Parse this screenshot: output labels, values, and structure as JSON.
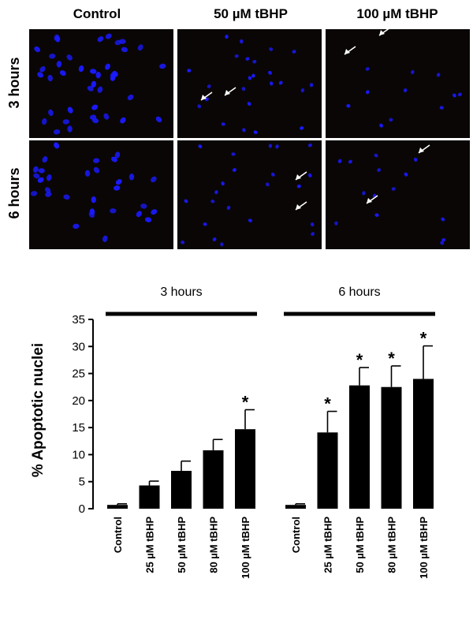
{
  "micrograph_panel": {
    "column_labels": [
      "Control",
      "50 µM tBHP",
      "100 µM tBHP"
    ],
    "row_labels": [
      "3 hours",
      "6 hours"
    ],
    "nucleus_color": "#1a1aff",
    "background_color": "#0a0606",
    "arrow_color": "#ffffff"
  },
  "chart_data": {
    "type": "bar",
    "title": "",
    "xlabel": "",
    "ylabel": "% Apoptotic nuclei",
    "ylim": [
      0,
      35
    ],
    "yticks": [
      0,
      5,
      10,
      15,
      20,
      25,
      30,
      35
    ],
    "grid": false,
    "bar_color": "#000000",
    "groups": [
      {
        "label": "3 hours",
        "categories": [
          "Control",
          "25 µM tBHP",
          "50 µM tBHP",
          "80 µM tBHP",
          "100 µM tBHP"
        ],
        "values": [
          0.7,
          4.3,
          7.0,
          10.8,
          14.7
        ],
        "errors": [
          0.2,
          0.8,
          1.8,
          2.0,
          3.6
        ],
        "significant": [
          false,
          false,
          false,
          false,
          true
        ]
      },
      {
        "label": "6 hours",
        "categories": [
          "Control",
          "25 µM tBHP",
          "50 µM tBHP",
          "80 µM tBHP",
          "100 µM tBHP"
        ],
        "values": [
          0.7,
          14.1,
          22.8,
          22.5,
          24.0
        ],
        "errors": [
          0.2,
          3.9,
          3.3,
          3.9,
          6.1
        ],
        "significant": [
          false,
          true,
          true,
          true,
          true
        ]
      }
    ],
    "significance_marker": "*"
  }
}
